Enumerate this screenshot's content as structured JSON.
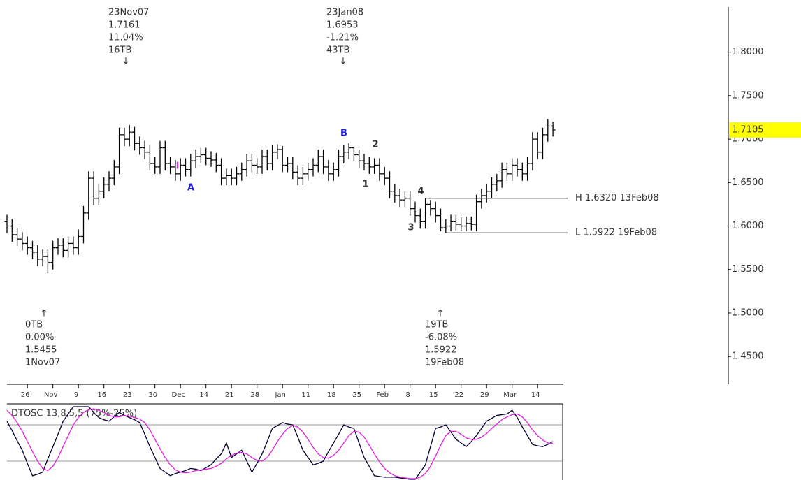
{
  "chart_data": [
    {
      "type": "ohlc",
      "color": "#000000",
      "categories": [
        null,
        null,
        null,
        null,
        "26",
        null,
        null,
        null,
        null,
        "Nov",
        null,
        null,
        null,
        null,
        "9",
        null,
        null,
        null,
        null,
        "16",
        null,
        null,
        null,
        null,
        "23",
        null,
        null,
        null,
        null,
        "30",
        null,
        null,
        null,
        null,
        "Dec",
        null,
        null,
        null,
        null,
        "14",
        null,
        null,
        null,
        null,
        "21",
        null,
        null,
        null,
        null,
        "28",
        null,
        null,
        null,
        null,
        "Jan",
        null,
        null,
        null,
        null,
        "11",
        null,
        null,
        null,
        null,
        "18",
        null,
        null,
        null,
        null,
        "25",
        null,
        null,
        null,
        null,
        "Feb",
        null,
        null,
        null,
        null,
        "8",
        null,
        null,
        null,
        null,
        "15",
        null,
        null,
        null,
        null,
        "22",
        null,
        null,
        null,
        null,
        "29",
        null,
        null,
        null,
        null,
        "Mar",
        null,
        null,
        null,
        null,
        "14",
        null,
        null,
        null
      ],
      "open": [
        1.605,
        1.6,
        1.59,
        1.585,
        1.58,
        1.575,
        1.57,
        1.562,
        1.565,
        1.558,
        1.575,
        1.578,
        1.572,
        1.58,
        1.575,
        1.588,
        1.615,
        1.655,
        1.632,
        1.64,
        1.648,
        1.655,
        1.668,
        1.705,
        1.7,
        1.708,
        1.695,
        1.69,
        1.685,
        1.672,
        1.668,
        1.69,
        1.672,
        1.668,
        1.66,
        1.67,
        1.665,
        1.675,
        1.68,
        1.682,
        1.678,
        1.676,
        1.67,
        1.655,
        1.658,
        1.655,
        1.66,
        1.665,
        1.675,
        1.67,
        1.668,
        1.68,
        1.672,
        1.685,
        1.688,
        1.67,
        1.672,
        1.662,
        1.655,
        1.66,
        1.665,
        1.67,
        1.68,
        1.668,
        1.66,
        1.665,
        1.68,
        1.685,
        1.69,
        1.682,
        1.675,
        1.672,
        1.668,
        1.67,
        1.66,
        1.655,
        1.64,
        1.635,
        1.63,
        1.632,
        1.62,
        1.612,
        1.605,
        1.625,
        1.62,
        1.612,
        1.598,
        1.6,
        1.605,
        1.602,
        1.6,
        1.603,
        1.602,
        1.628,
        1.635,
        1.64,
        1.648,
        1.652,
        1.665,
        1.66,
        1.67,
        1.665,
        1.66,
        1.672,
        1.7,
        1.685,
        1.705,
        1.715
      ],
      "high": [
        1.613,
        1.608,
        1.598,
        1.593,
        1.588,
        1.583,
        1.578,
        1.573,
        1.573,
        1.583,
        1.586,
        1.586,
        1.588,
        1.588,
        1.596,
        1.623,
        1.663,
        1.663,
        1.648,
        1.656,
        1.663,
        1.676,
        1.713,
        1.713,
        1.7161,
        1.714,
        1.703,
        1.698,
        1.693,
        1.68,
        1.698,
        1.698,
        1.68,
        1.676,
        1.678,
        1.678,
        1.683,
        1.688,
        1.69,
        1.69,
        1.686,
        1.684,
        1.678,
        1.666,
        1.666,
        1.668,
        1.673,
        1.683,
        1.683,
        1.678,
        1.688,
        1.688,
        1.693,
        1.694,
        1.692,
        1.68,
        1.68,
        1.67,
        1.668,
        1.673,
        1.678,
        1.688,
        1.688,
        1.676,
        1.673,
        1.688,
        1.693,
        1.6953,
        1.69,
        1.688,
        1.683,
        1.68,
        1.678,
        1.678,
        1.668,
        1.663,
        1.648,
        1.643,
        1.64,
        1.64,
        1.628,
        1.62,
        1.632,
        1.63,
        1.628,
        1.62,
        1.608,
        1.613,
        1.613,
        1.61,
        1.611,
        1.611,
        1.636,
        1.643,
        1.648,
        1.656,
        1.66,
        1.673,
        1.673,
        1.678,
        1.678,
        1.673,
        1.68,
        1.708,
        1.708,
        1.713,
        1.723,
        1.72
      ],
      "low": [
        1.592,
        1.582,
        1.577,
        1.572,
        1.567,
        1.562,
        1.554,
        1.554,
        1.5455,
        1.55,
        1.567,
        1.564,
        1.564,
        1.567,
        1.567,
        1.58,
        1.607,
        1.624,
        1.624,
        1.632,
        1.64,
        1.647,
        1.66,
        1.692,
        1.692,
        1.687,
        1.682,
        1.677,
        1.664,
        1.66,
        1.66,
        1.664,
        1.66,
        1.652,
        1.652,
        1.657,
        1.657,
        1.667,
        1.672,
        1.67,
        1.668,
        1.662,
        1.647,
        1.647,
        1.647,
        1.647,
        1.652,
        1.657,
        1.662,
        1.66,
        1.66,
        1.664,
        1.664,
        1.677,
        1.662,
        1.662,
        1.654,
        1.647,
        1.647,
        1.652,
        1.657,
        1.662,
        1.66,
        1.652,
        1.652,
        1.657,
        1.672,
        1.677,
        1.674,
        1.667,
        1.664,
        1.66,
        1.66,
        1.652,
        1.647,
        1.632,
        1.627,
        1.622,
        1.622,
        1.612,
        1.604,
        1.597,
        1.597,
        1.612,
        1.604,
        1.594,
        1.5922,
        1.594,
        1.595,
        1.594,
        1.594,
        1.595,
        1.594,
        1.62,
        1.627,
        1.632,
        1.64,
        1.644,
        1.652,
        1.652,
        1.657,
        1.652,
        1.652,
        1.664,
        1.677,
        1.677,
        1.697,
        1.703
      ],
      "close": [
        1.6,
        1.59,
        1.585,
        1.58,
        1.575,
        1.57,
        1.562,
        1.565,
        1.558,
        1.575,
        1.578,
        1.572,
        1.58,
        1.575,
        1.588,
        1.615,
        1.655,
        1.632,
        1.64,
        1.648,
        1.655,
        1.668,
        1.705,
        1.7,
        1.708,
        1.695,
        1.69,
        1.685,
        1.672,
        1.668,
        1.69,
        1.672,
        1.668,
        1.66,
        1.67,
        1.665,
        1.675,
        1.68,
        1.682,
        1.678,
        1.676,
        1.67,
        1.655,
        1.658,
        1.655,
        1.66,
        1.665,
        1.675,
        1.67,
        1.668,
        1.68,
        1.672,
        1.685,
        1.688,
        1.67,
        1.672,
        1.662,
        1.655,
        1.66,
        1.665,
        1.67,
        1.68,
        1.668,
        1.66,
        1.665,
        1.68,
        1.685,
        1.69,
        1.682,
        1.675,
        1.672,
        1.668,
        1.67,
        1.66,
        1.655,
        1.64,
        1.635,
        1.63,
        1.632,
        1.62,
        1.612,
        1.605,
        1.625,
        1.62,
        1.612,
        1.598,
        1.6,
        1.605,
        1.602,
        1.6,
        1.603,
        1.602,
        1.628,
        1.635,
        1.64,
        1.648,
        1.652,
        1.665,
        1.66,
        1.67,
        1.665,
        1.66,
        1.672,
        1.7,
        1.685,
        1.705,
        1.715,
        1.7105
      ],
      "ylim": [
        1.418,
        1.86
      ],
      "yticks": [
        {
          "value": 1.8,
          "label": "1.8000"
        },
        {
          "value": 1.75,
          "label": "1.7500"
        },
        {
          "value": 1.7,
          "label": "1.7000"
        },
        {
          "value": 1.65,
          "label": "1.6500"
        },
        {
          "value": 1.6,
          "label": "1.6000"
        },
        {
          "value": 1.55,
          "label": "1.5500"
        },
        {
          "value": 1.5,
          "label": "1.5000"
        },
        {
          "value": 1.45,
          "label": "1.4500"
        }
      ],
      "last_price": {
        "value": 1.7105,
        "label": "1.7105",
        "color": "#ffff00"
      },
      "levels": [
        {
          "value": 1.632,
          "label": "H 1.6320 13Feb08"
        },
        {
          "value": 1.5922,
          "label": "L 1.5922 19Feb08"
        }
      ],
      "annotations": [
        {
          "lines": [
            "23Nov07",
            "1.7161",
            "11.04%",
            "16TB"
          ],
          "arrow": "↓"
        },
        {
          "lines": [
            "23Jan08",
            "1.6953",
            "-1.21%",
            "43TB"
          ],
          "arrow": "↓"
        },
        {
          "lines": [
            "0TB",
            "0.00%",
            "1.5455",
            "1Nov07"
          ],
          "arrow": "↑"
        },
        {
          "lines": [
            "19TB",
            "-6.08%",
            "1.5922",
            "19Feb08"
          ],
          "arrow": "↑"
        }
      ],
      "wave_labels": [
        {
          "text": "A",
          "color": "#1a1adc"
        },
        {
          "text": "B",
          "color": "#1a1adc"
        },
        {
          "text": "1",
          "color": "#333333"
        },
        {
          "text": "2",
          "color": "#333333"
        },
        {
          "text": "3",
          "color": "#333333"
        },
        {
          "text": "4",
          "color": "#333333"
        },
        {
          "text": "I",
          "color": "#d040d0"
        }
      ]
    },
    {
      "type": "line",
      "title": "DTOSC 13,8,5,5 (75%-25%)",
      "ylim": [
        0,
        100
      ],
      "levels": [
        75,
        25
      ],
      "series": [
        {
          "color": "#000033",
          "values": [
            80,
            67,
            53,
            40,
            22,
            5,
            7,
            10,
            28,
            45,
            62,
            80,
            90,
            100,
            100,
            100,
            100,
            92,
            85,
            82,
            80,
            86,
            92,
            88,
            85,
            82,
            78,
            62,
            45,
            30,
            15,
            10,
            5,
            8,
            10,
            12,
            15,
            14,
            12,
            16,
            20,
            28,
            35,
            50,
            30,
            35,
            40,
            25,
            10,
            22,
            35,
            52,
            70,
            74,
            78,
            76,
            75,
            58,
            40,
            30,
            20,
            22,
            25,
            38,
            50,
            62,
            75,
            72,
            70,
            50,
            30,
            18,
            5,
            4,
            3,
            3,
            3,
            2,
            1,
            0,
            0,
            10,
            20,
            45,
            70,
            72,
            75,
            65,
            55,
            50,
            45,
            52,
            60,
            70,
            80,
            84,
            88,
            89,
            90,
            95,
            85,
            72,
            60,
            48,
            46,
            45,
            48,
            52
          ]
        },
        {
          "color": "#e020e0",
          "values": [
            95,
            88,
            78,
            66,
            52,
            38,
            25,
            15,
            12,
            18,
            30,
            45,
            60,
            75,
            85,
            92,
            96,
            97,
            95,
            92,
            88,
            86,
            86,
            88,
            87,
            85,
            83,
            78,
            68,
            55,
            42,
            30,
            20,
            13,
            10,
            9,
            10,
            12,
            13,
            14,
            15,
            18,
            22,
            28,
            33,
            36,
            37,
            35,
            30,
            26,
            25,
            30,
            40,
            52,
            62,
            70,
            74,
            72,
            65,
            55,
            44,
            35,
            30,
            29,
            33,
            40,
            50,
            60,
            66,
            65,
            58,
            47,
            35,
            24,
            15,
            9,
            5,
            3,
            2,
            1,
            1,
            3,
            8,
            18,
            32,
            47,
            60,
            66,
            66,
            62,
            57,
            55,
            55,
            58,
            63,
            70,
            76,
            82,
            86,
            89,
            90,
            86,
            78,
            68,
            60,
            54,
            50,
            49
          ]
        }
      ]
    }
  ]
}
